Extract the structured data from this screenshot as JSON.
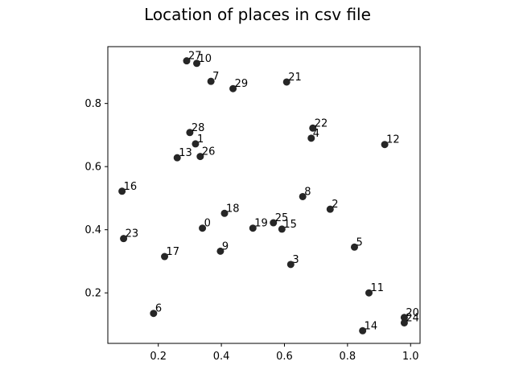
{
  "chart_data": {
    "type": "scatter",
    "title": "Location of places in csv file",
    "xlabel": "",
    "ylabel": "",
    "xlim": [
      0.04,
      1.03
    ],
    "ylim": [
      0.04,
      0.98
    ],
    "x_ticks": [
      "0.2",
      "0.4",
      "0.6",
      "0.8",
      "1.0"
    ],
    "y_ticks": [
      "0.2",
      "0.4",
      "0.6",
      "0.8"
    ],
    "x_tick_values": [
      0.2,
      0.4,
      0.6,
      0.8,
      1.0
    ],
    "y_tick_values": [
      0.2,
      0.4,
      0.6,
      0.8
    ],
    "grid": false,
    "marker_color": "#262626",
    "points": [
      {
        "label": "0",
        "x": 0.34,
        "y": 0.405
      },
      {
        "label": "1",
        "x": 0.318,
        "y": 0.672
      },
      {
        "label": "2",
        "x": 0.745,
        "y": 0.465
      },
      {
        "label": "3",
        "x": 0.62,
        "y": 0.29
      },
      {
        "label": "4",
        "x": 0.685,
        "y": 0.69
      },
      {
        "label": "5",
        "x": 0.822,
        "y": 0.345
      },
      {
        "label": "6",
        "x": 0.185,
        "y": 0.135
      },
      {
        "label": "7",
        "x": 0.367,
        "y": 0.87
      },
      {
        "label": "8",
        "x": 0.658,
        "y": 0.505
      },
      {
        "label": "9",
        "x": 0.397,
        "y": 0.332
      },
      {
        "label": "10",
        "x": 0.322,
        "y": 0.927
      },
      {
        "label": "11",
        "x": 0.868,
        "y": 0.2
      },
      {
        "label": "12",
        "x": 0.918,
        "y": 0.67
      },
      {
        "label": "13",
        "x": 0.26,
        "y": 0.628
      },
      {
        "label": "14",
        "x": 0.848,
        "y": 0.08
      },
      {
        "label": "15",
        "x": 0.592,
        "y": 0.402
      },
      {
        "label": "16",
        "x": 0.085,
        "y": 0.522
      },
      {
        "label": "17",
        "x": 0.22,
        "y": 0.315
      },
      {
        "label": "18",
        "x": 0.41,
        "y": 0.452
      },
      {
        "label": "19",
        "x": 0.5,
        "y": 0.405
      },
      {
        "label": "20",
        "x": 0.98,
        "y": 0.122
      },
      {
        "label": "21",
        "x": 0.607,
        "y": 0.868
      },
      {
        "label": "22",
        "x": 0.69,
        "y": 0.722
      },
      {
        "label": "23",
        "x": 0.09,
        "y": 0.372
      },
      {
        "label": "24",
        "x": 0.98,
        "y": 0.105
      },
      {
        "label": "25",
        "x": 0.565,
        "y": 0.422
      },
      {
        "label": "26",
        "x": 0.333,
        "y": 0.632
      },
      {
        "label": "27",
        "x": 0.29,
        "y": 0.935
      },
      {
        "label": "28",
        "x": 0.3,
        "y": 0.708
      },
      {
        "label": "29",
        "x": 0.437,
        "y": 0.847
      }
    ]
  }
}
